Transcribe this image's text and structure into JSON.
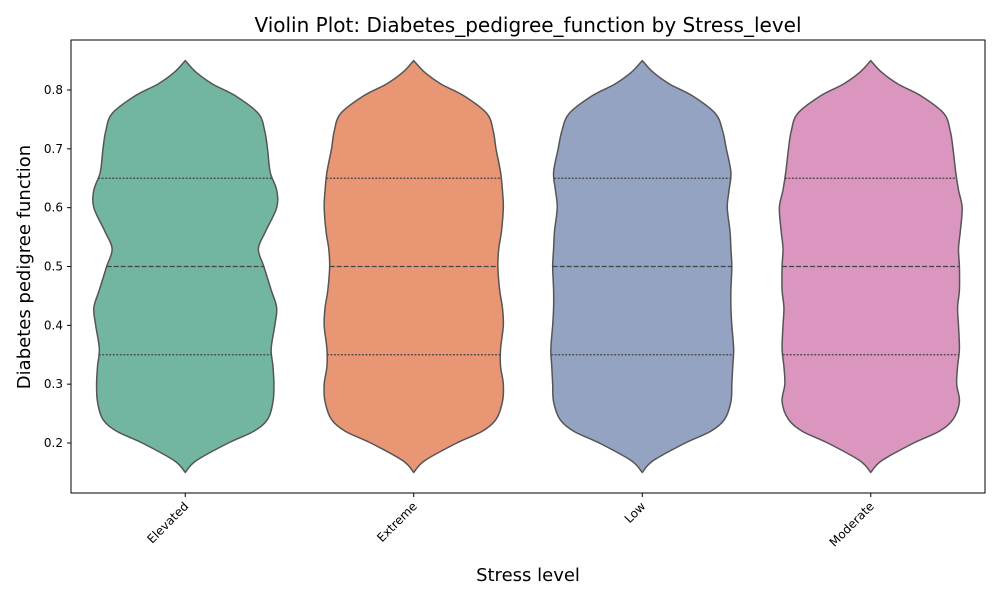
{
  "chart_data": {
    "type": "violin",
    "title": "Violin Plot: Diabetes_pedigree_function by Stress_level",
    "xlabel": "Stress level",
    "ylabel": "Diabetes pedigree function",
    "categories": [
      "Elevated",
      "Extreme",
      "Low",
      "Moderate"
    ],
    "colors": [
      "#72b6a1",
      "#e99675",
      "#95a3c3",
      "#db96c0"
    ],
    "outline_color": "#555555",
    "ylim": [
      0.115,
      0.885
    ],
    "yticks": [
      0.2,
      0.3,
      0.4,
      0.5,
      0.6,
      0.7,
      0.8
    ],
    "ytick_labels": [
      "0.2",
      "0.3",
      "0.4",
      "0.5",
      "0.6",
      "0.7",
      "0.8"
    ],
    "grid": false,
    "inner": "quartile",
    "range": [
      0.15,
      0.85
    ],
    "quartiles": [
      [
        0.35,
        0.5,
        0.65
      ],
      [
        0.35,
        0.5,
        0.65
      ],
      [
        0.35,
        0.5,
        0.65
      ],
      [
        0.35,
        0.5,
        0.65
      ]
    ],
    "density_profiles": {
      "y": [
        0.15,
        0.17,
        0.2,
        0.22,
        0.24,
        0.27,
        0.3,
        0.33,
        0.36,
        0.4,
        0.43,
        0.46,
        0.5,
        0.53,
        0.56,
        0.6,
        0.63,
        0.66,
        0.7,
        0.73,
        0.76,
        0.79,
        0.81,
        0.83,
        0.85
      ],
      "half_width": [
        [
          0.0,
          0.12,
          0.47,
          0.75,
          0.9,
          0.96,
          0.97,
          0.96,
          0.94,
          0.98,
          1.0,
          0.94,
          0.86,
          0.8,
          0.88,
          1.0,
          1.0,
          0.93,
          0.9,
          0.87,
          0.8,
          0.55,
          0.3,
          0.12,
          0.0
        ],
        [
          0.0,
          0.12,
          0.47,
          0.75,
          0.9,
          0.97,
          0.98,
          0.95,
          0.95,
          0.98,
          0.97,
          0.94,
          0.92,
          0.93,
          0.96,
          0.98,
          0.97,
          0.95,
          0.9,
          0.87,
          0.8,
          0.55,
          0.3,
          0.12,
          0.0
        ],
        [
          0.0,
          0.12,
          0.47,
          0.75,
          0.9,
          0.97,
          0.98,
          0.99,
          1.0,
          0.98,
          0.97,
          0.97,
          0.98,
          0.97,
          0.96,
          0.93,
          0.95,
          0.97,
          0.92,
          0.88,
          0.8,
          0.55,
          0.3,
          0.12,
          0.0
        ],
        [
          0.0,
          0.12,
          0.47,
          0.75,
          0.9,
          0.97,
          0.94,
          0.95,
          0.97,
          0.96,
          0.95,
          0.97,
          0.97,
          0.96,
          0.98,
          1.0,
          0.96,
          0.93,
          0.9,
          0.87,
          0.8,
          0.55,
          0.3,
          0.12,
          0.0
        ]
      ]
    }
  }
}
